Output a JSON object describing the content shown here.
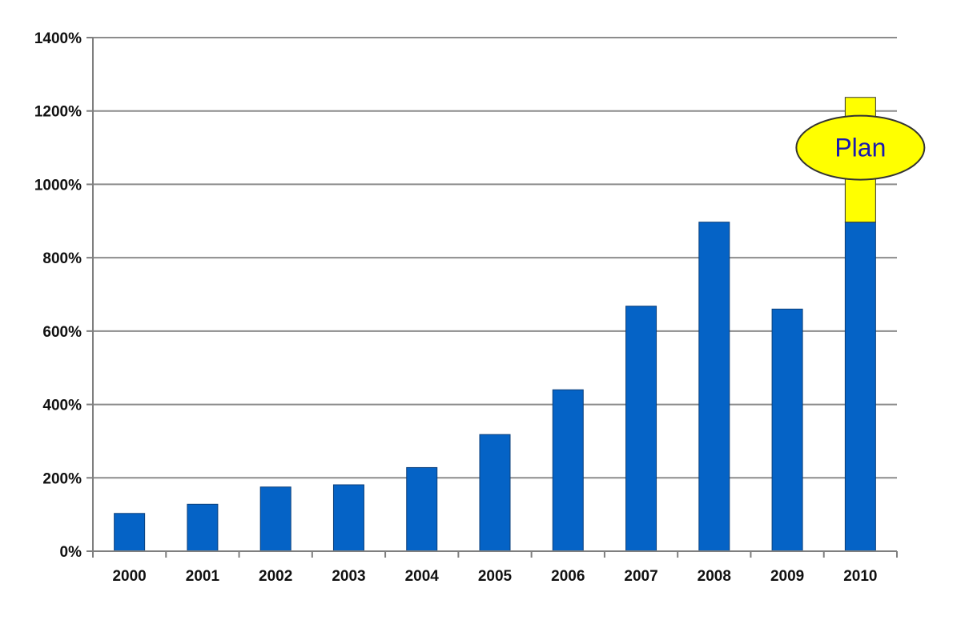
{
  "chart_data": {
    "type": "bar",
    "categories": [
      "2000",
      "2001",
      "2002",
      "2003",
      "2004",
      "2005",
      "2006",
      "2007",
      "2008",
      "2009",
      "2010"
    ],
    "series": [
      {
        "values": [
          103,
          128,
          175,
          181,
          228,
          318,
          440,
          668,
          897,
          660,
          897
        ]
      },
      {
        "values": [
          0,
          0,
          0,
          0,
          0,
          0,
          0,
          0,
          0,
          0,
          340
        ]
      }
    ],
    "ylim": [
      0,
      1400
    ],
    "yticks": [
      "0%",
      "200%",
      "400%",
      "600%",
      "800%",
      "1000%",
      "1200%",
      "1400%"
    ],
    "grid": true,
    "annotation": {
      "text": "Plan",
      "category": "2010",
      "value": 1100
    },
    "colors": {
      "bar": "#0563c6",
      "plan": "#ffff00",
      "plan_text": "#1a1ab0",
      "grid": "#8c8c8c",
      "axis": "#7f7f7f"
    }
  }
}
